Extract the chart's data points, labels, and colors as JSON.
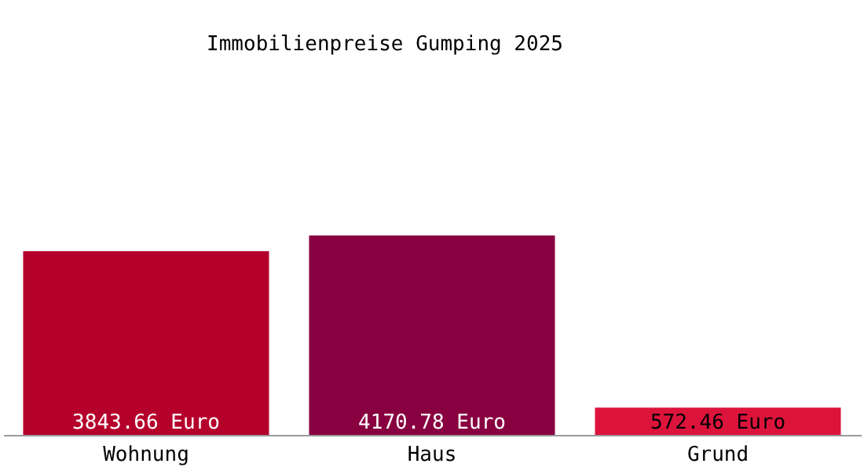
{
  "chart_data": {
    "type": "bar",
    "title": "Immobilienpreise Gumping 2025",
    "categories": [
      "Wohnung",
      "Haus",
      "Grund"
    ],
    "values": [
      3843.66,
      4170.78,
      572.46
    ],
    "colors": [
      "#b5002b",
      "#880040",
      "#dc143c"
    ],
    "value_labels": [
      "3843.66 Euro",
      "4170.78 Euro",
      "572.46 Euro"
    ],
    "grid": false
  }
}
